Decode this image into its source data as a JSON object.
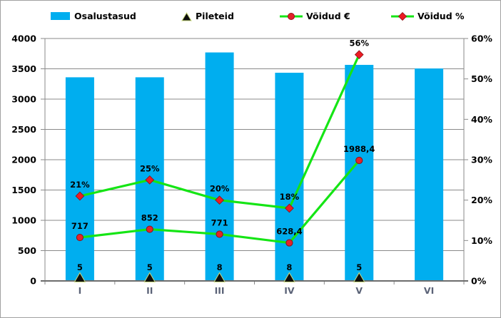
{
  "window": {
    "background": "#ffffff",
    "border": "#a0a0a0"
  },
  "colors": {
    "bar": "#00AEEF",
    "line": "#15E515",
    "marker_circle": "#E3242B",
    "marker_diamond": "#ED1C24",
    "marker_stroke": "#8B1116",
    "triangle_fill": "#0d0d0d",
    "triangle_stroke": "#C9DA7E",
    "grid": "#8a8a8a",
    "axis_line": "#6d6d6d",
    "axis_text": "#000000",
    "category_text": "#5b6377",
    "data_label": "#000000"
  },
  "legend": {
    "items": [
      {
        "label": "Osalustasud",
        "marker": "bar-swatch"
      },
      {
        "label": "Pileteid",
        "marker": "triangle"
      },
      {
        "label": "Võidud €",
        "marker": "line-circle"
      },
      {
        "label": "Võidud %",
        "marker": "line-diamond"
      }
    ]
  },
  "chart_data": {
    "type": "combo",
    "title": "",
    "categories": [
      "I",
      "II",
      "III",
      "IV",
      "V",
      "VI"
    ],
    "series": [
      {
        "name": "Osalustasud",
        "type": "bar",
        "axis": "left",
        "values": [
          3360,
          3360,
          3770,
          3435,
          3565,
          3505
        ]
      },
      {
        "name": "Pileteid",
        "type": "point",
        "marker": "triangle",
        "axis": "left",
        "plotted_at_baseline": true,
        "values": [
          5,
          5,
          8,
          8,
          5,
          null
        ],
        "labels": [
          "5",
          "5",
          "8",
          "8",
          "5",
          ""
        ]
      },
      {
        "name": "Võidud €",
        "type": "line",
        "marker": "circle",
        "axis": "left",
        "values": [
          717,
          852,
          771,
          628.4,
          1988.4,
          null
        ],
        "labels": [
          "717",
          "852",
          "771",
          "628,4",
          "1988,4",
          ""
        ]
      },
      {
        "name": "Võidud %",
        "type": "line",
        "marker": "diamond",
        "axis": "right",
        "values": [
          21,
          25,
          20,
          18,
          56,
          null
        ],
        "labels": [
          "21%",
          "25%",
          "20%",
          "18%",
          "56%",
          ""
        ]
      }
    ],
    "left_axis": {
      "min": 0,
      "max": 4000,
      "step": 500,
      "tick_labels": [
        "0",
        "500",
        "1000",
        "1500",
        "2000",
        "2500",
        "3000",
        "3500",
        "4000"
      ]
    },
    "right_axis": {
      "min": 0,
      "max": 60,
      "step": 10,
      "tick_labels": [
        "0%",
        "10%",
        "20%",
        "30%",
        "40%",
        "50%",
        "60%"
      ]
    },
    "grid": true,
    "legend_position": "top"
  }
}
